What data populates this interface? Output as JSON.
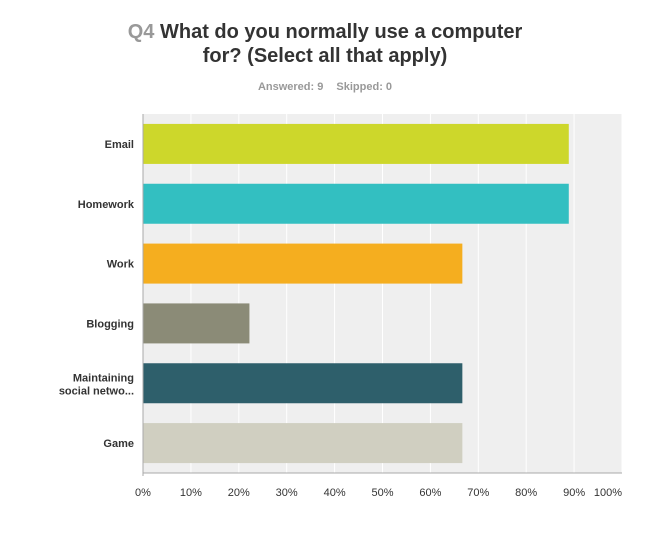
{
  "header": {
    "question_number": "Q4",
    "title_line1": "What do you normally use a computer",
    "title_line2": "for? (Select all that apply)",
    "answered": "Answered: 9",
    "skipped": "Skipped: 0"
  },
  "chart_data": {
    "type": "bar",
    "orientation": "horizontal",
    "categories": [
      "Email",
      "Homework",
      "Work",
      "Blogging",
      "Maintaining social netwo...",
      "Game"
    ],
    "values": [
      88.89,
      88.89,
      66.67,
      22.22,
      66.67,
      66.67
    ],
    "colors": [
      "#cdd72b",
      "#33bfc1",
      "#f5ae1f",
      "#8b8b77",
      "#2e5f6b",
      "#d0cfc1"
    ],
    "xlim": [
      0,
      100
    ],
    "x_ticks": [
      "0%",
      "10%",
      "20%",
      "30%",
      "40%",
      "50%",
      "60%",
      "70%",
      "80%",
      "90%",
      "100%"
    ],
    "grid": true,
    "xlabel": "",
    "ylabel": ""
  }
}
